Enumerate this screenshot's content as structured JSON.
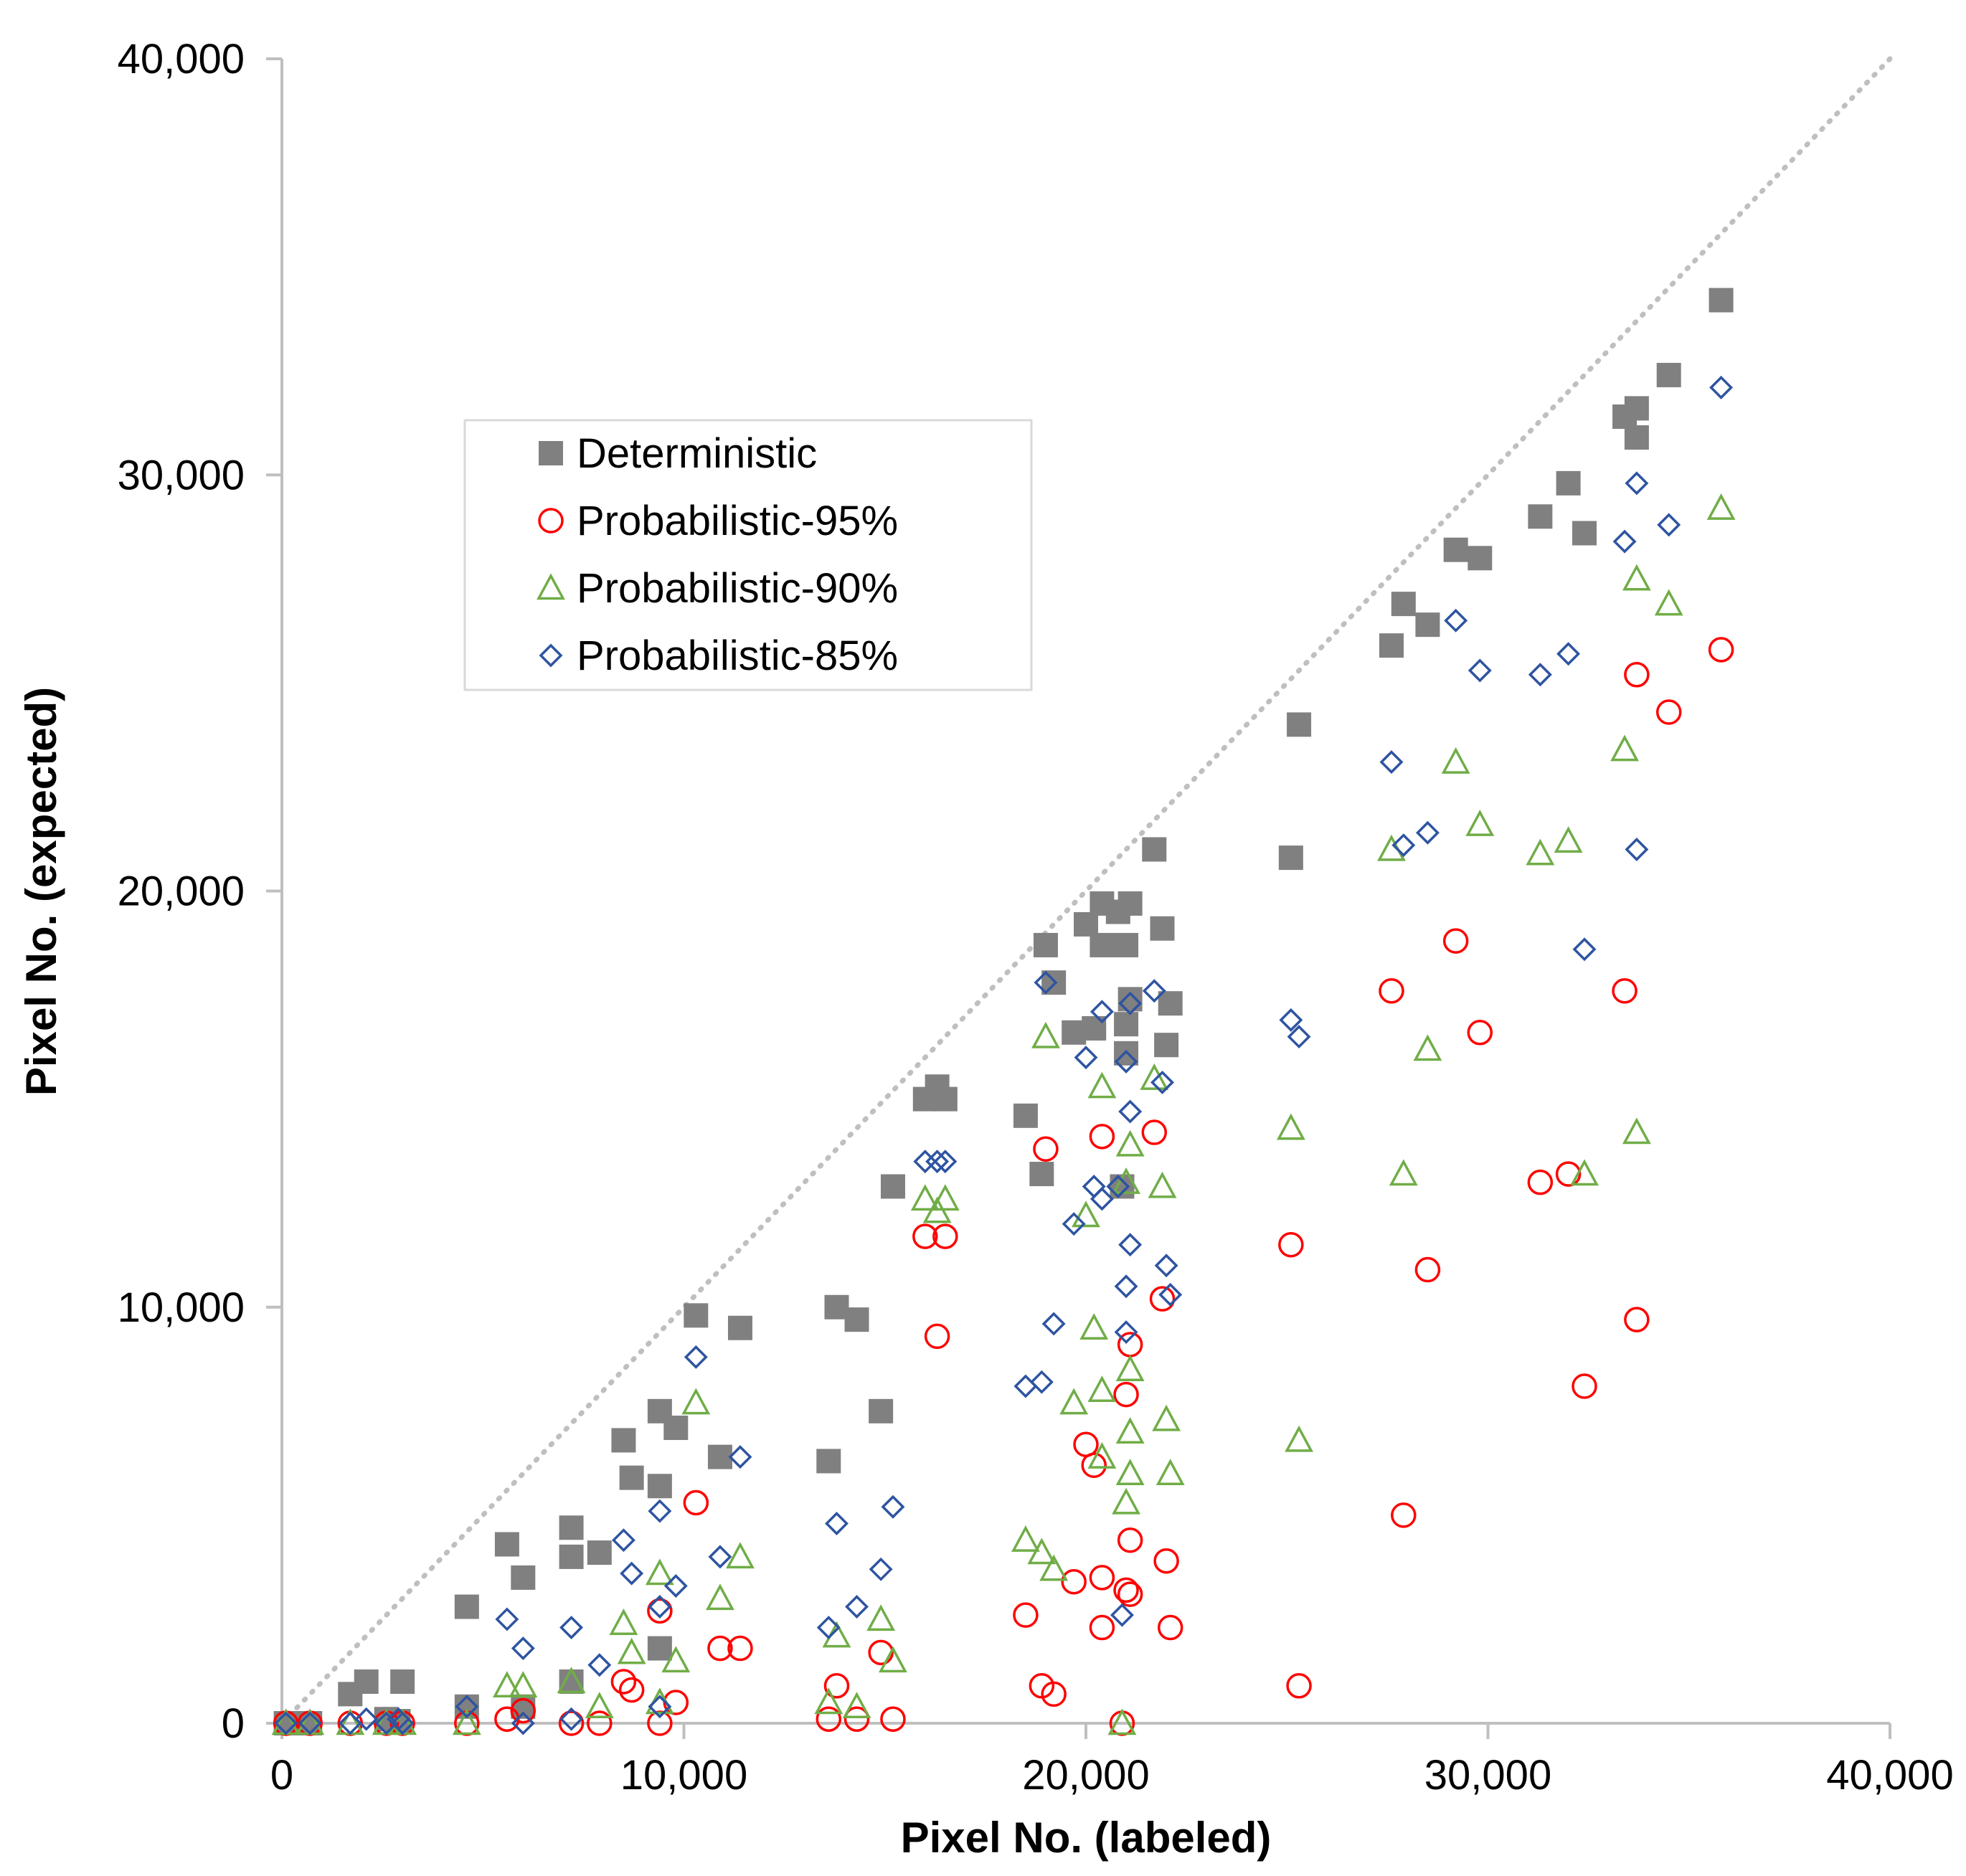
{
  "chart_data": {
    "type": "scatter",
    "xlabel": "Pixel No. (labeled)",
    "ylabel": "Pixel No. (expected)",
    "xlim": [
      0,
      40000
    ],
    "ylim": [
      0,
      40000
    ],
    "xticks": [
      "0",
      "10,000",
      "20,000",
      "30,000",
      "40,000"
    ],
    "yticks": [
      "0",
      "10,000",
      "20,000",
      "30,000",
      "40,000"
    ],
    "grid": false,
    "reference_line": {
      "style": "dotted",
      "color": "#BFBFBF",
      "from": [
        0,
        0
      ],
      "to": [
        40000,
        40000
      ]
    },
    "legend": {
      "placement": "upper-left-inside"
    },
    "series": [
      {
        "name": "Deterministic",
        "marker": "filled-square",
        "color": "#808080",
        "points": [
          [
            100,
            0
          ],
          [
            700,
            0
          ],
          [
            1700,
            700
          ],
          [
            2100,
            1000
          ],
          [
            2600,
            100
          ],
          [
            2900,
            50
          ],
          [
            3000,
            1000
          ],
          [
            4600,
            2800
          ],
          [
            4600,
            400
          ],
          [
            5600,
            4300
          ],
          [
            6000,
            3500
          ],
          [
            6000,
            400
          ],
          [
            7200,
            4700
          ],
          [
            7200,
            4000
          ],
          [
            7200,
            1000
          ],
          [
            7900,
            4100
          ],
          [
            8500,
            6800
          ],
          [
            8700,
            5900
          ],
          [
            9400,
            7500
          ],
          [
            9400,
            5700
          ],
          [
            9400,
            1800
          ],
          [
            9800,
            7100
          ],
          [
            10300,
            9800
          ],
          [
            10900,
            6400
          ],
          [
            11400,
            9500
          ],
          [
            13600,
            6300
          ],
          [
            13800,
            10000
          ],
          [
            14300,
            9700
          ],
          [
            14900,
            7500
          ],
          [
            15200,
            12900
          ],
          [
            16000,
            15000
          ],
          [
            16300,
            15300
          ],
          [
            16500,
            15000
          ],
          [
            18500,
            14600
          ],
          [
            18900,
            13200
          ],
          [
            19000,
            18700
          ],
          [
            19200,
            17800
          ],
          [
            19700,
            16600
          ],
          [
            20000,
            19200
          ],
          [
            20200,
            16700
          ],
          [
            20400,
            19700
          ],
          [
            20400,
            18700
          ],
          [
            20800,
            19500
          ],
          [
            20900,
            12900
          ],
          [
            21000,
            18700
          ],
          [
            21000,
            16100
          ],
          [
            21000,
            16800
          ],
          [
            21100,
            19700
          ],
          [
            21100,
            17400
          ],
          [
            21700,
            21000
          ],
          [
            21900,
            19100
          ],
          [
            22000,
            16300
          ],
          [
            22100,
            17300
          ],
          [
            25100,
            20800
          ],
          [
            25300,
            24000
          ],
          [
            27600,
            25900
          ],
          [
            27900,
            26900
          ],
          [
            28500,
            26400
          ],
          [
            29200,
            28200
          ],
          [
            29800,
            28000
          ],
          [
            31300,
            29000
          ],
          [
            32000,
            29800
          ],
          [
            32400,
            28600
          ],
          [
            33400,
            31400
          ],
          [
            33700,
            31600
          ],
          [
            33700,
            30900
          ],
          [
            34500,
            32400
          ],
          [
            35800,
            34200
          ]
        ]
      },
      {
        "name": "Probabilistic-95%",
        "marker": "open-circle",
        "color": "#FF0000",
        "points": [
          [
            100,
            0
          ],
          [
            700,
            0
          ],
          [
            1700,
            0
          ],
          [
            2600,
            0
          ],
          [
            3000,
            0
          ],
          [
            4600,
            0
          ],
          [
            5600,
            100
          ],
          [
            6000,
            300
          ],
          [
            7200,
            0
          ],
          [
            7900,
            0
          ],
          [
            8500,
            1000
          ],
          [
            8700,
            800
          ],
          [
            9400,
            2700
          ],
          [
            9400,
            0
          ],
          [
            9800,
            500
          ],
          [
            10300,
            5300
          ],
          [
            10900,
            1800
          ],
          [
            11400,
            1800
          ],
          [
            13600,
            100
          ],
          [
            13800,
            900
          ],
          [
            14300,
            100
          ],
          [
            14900,
            1700
          ],
          [
            15200,
            100
          ],
          [
            16000,
            11700
          ],
          [
            16300,
            9300
          ],
          [
            16500,
            11700
          ],
          [
            18500,
            2600
          ],
          [
            18900,
            900
          ],
          [
            19000,
            13800
          ],
          [
            19200,
            700
          ],
          [
            19700,
            3400
          ],
          [
            20000,
            6700
          ],
          [
            20200,
            6200
          ],
          [
            20400,
            2300
          ],
          [
            20400,
            3500
          ],
          [
            20400,
            14100
          ],
          [
            20900,
            0
          ],
          [
            21000,
            7900
          ],
          [
            21000,
            3200
          ],
          [
            21100,
            9100
          ],
          [
            21100,
            4400
          ],
          [
            21100,
            3100
          ],
          [
            21700,
            14200
          ],
          [
            21900,
            10200
          ],
          [
            22000,
            3900
          ],
          [
            22100,
            2300
          ],
          [
            25100,
            11500
          ],
          [
            25300,
            900
          ],
          [
            27600,
            17600
          ],
          [
            27900,
            5000
          ],
          [
            28500,
            10900
          ],
          [
            29200,
            18800
          ],
          [
            29800,
            16600
          ],
          [
            31300,
            13000
          ],
          [
            32000,
            13200
          ],
          [
            32400,
            8100
          ],
          [
            33400,
            17600
          ],
          [
            33700,
            25200
          ],
          [
            33700,
            9700
          ],
          [
            34500,
            24300
          ],
          [
            35800,
            25800
          ]
        ]
      },
      {
        "name": "Probabilistic-90%",
        "marker": "open-triangle",
        "color": "#70AD47",
        "points": [
          [
            100,
            0
          ],
          [
            700,
            0
          ],
          [
            1700,
            0
          ],
          [
            2600,
            0
          ],
          [
            3000,
            0
          ],
          [
            4600,
            0
          ],
          [
            5600,
            900
          ],
          [
            6000,
            900
          ],
          [
            7200,
            1000
          ],
          [
            7900,
            400
          ],
          [
            8500,
            2400
          ],
          [
            8700,
            1700
          ],
          [
            9400,
            3600
          ],
          [
            9400,
            500
          ],
          [
            9800,
            1500
          ],
          [
            10300,
            7700
          ],
          [
            10900,
            3000
          ],
          [
            11400,
            4000
          ],
          [
            13600,
            500
          ],
          [
            13800,
            2100
          ],
          [
            14300,
            400
          ],
          [
            14900,
            2500
          ],
          [
            15200,
            1500
          ],
          [
            16000,
            12600
          ],
          [
            16300,
            12300
          ],
          [
            16500,
            12600
          ],
          [
            18500,
            4400
          ],
          [
            18900,
            4100
          ],
          [
            19000,
            16500
          ],
          [
            19200,
            3700
          ],
          [
            19700,
            7700
          ],
          [
            20000,
            12200
          ],
          [
            20200,
            9500
          ],
          [
            20400,
            6400
          ],
          [
            20400,
            8000
          ],
          [
            20400,
            15300
          ],
          [
            20900,
            0
          ],
          [
            21000,
            13000
          ],
          [
            21000,
            5300
          ],
          [
            21100,
            13900
          ],
          [
            21100,
            6000
          ],
          [
            21100,
            8500
          ],
          [
            21100,
            7000
          ],
          [
            21700,
            15500
          ],
          [
            21900,
            12900
          ],
          [
            22000,
            7300
          ],
          [
            22100,
            6000
          ],
          [
            25100,
            14300
          ],
          [
            25300,
            6800
          ],
          [
            27600,
            21000
          ],
          [
            27900,
            13200
          ],
          [
            28500,
            16200
          ],
          [
            29200,
            23100
          ],
          [
            29800,
            21600
          ],
          [
            31300,
            20900
          ],
          [
            32000,
            21200
          ],
          [
            32400,
            13200
          ],
          [
            33400,
            23400
          ],
          [
            33700,
            27500
          ],
          [
            33700,
            14200
          ],
          [
            34500,
            26900
          ],
          [
            35800,
            29200
          ]
        ]
      },
      {
        "name": "Probabilistic-85%",
        "marker": "open-diamond",
        "color": "#2E54A1",
        "points": [
          [
            100,
            0
          ],
          [
            700,
            0
          ],
          [
            1700,
            0
          ],
          [
            2100,
            100
          ],
          [
            2600,
            0
          ],
          [
            2900,
            100
          ],
          [
            3000,
            0
          ],
          [
            4600,
            400
          ],
          [
            5600,
            2500
          ],
          [
            6000,
            1800
          ],
          [
            6000,
            0
          ],
          [
            7200,
            2300
          ],
          [
            7200,
            100
          ],
          [
            7900,
            1400
          ],
          [
            8500,
            4400
          ],
          [
            8700,
            3600
          ],
          [
            9400,
            5100
          ],
          [
            9400,
            2800
          ],
          [
            9400,
            400
          ],
          [
            9800,
            3300
          ],
          [
            10300,
            8800
          ],
          [
            10900,
            4000
          ],
          [
            11400,
            6400
          ],
          [
            13600,
            2300
          ],
          [
            13800,
            4800
          ],
          [
            14300,
            2800
          ],
          [
            14900,
            3700
          ],
          [
            15200,
            5200
          ],
          [
            16000,
            13500
          ],
          [
            16300,
            13500
          ],
          [
            16500,
            13500
          ],
          [
            18500,
            8100
          ],
          [
            18900,
            8200
          ],
          [
            19000,
            17800
          ],
          [
            19200,
            9600
          ],
          [
            19700,
            12000
          ],
          [
            20000,
            16000
          ],
          [
            20200,
            12900
          ],
          [
            20400,
            12600
          ],
          [
            20400,
            17100
          ],
          [
            20800,
            12900
          ],
          [
            20900,
            2600
          ],
          [
            21000,
            10500
          ],
          [
            21000,
            15900
          ],
          [
            21000,
            9400
          ],
          [
            21100,
            14700
          ],
          [
            21100,
            17300
          ],
          [
            21100,
            11500
          ],
          [
            21700,
            17600
          ],
          [
            21900,
            15400
          ],
          [
            22000,
            11000
          ],
          [
            22100,
            10300
          ],
          [
            25100,
            16900
          ],
          [
            25300,
            16500
          ],
          [
            27600,
            23100
          ],
          [
            27900,
            21100
          ],
          [
            28500,
            21400
          ],
          [
            29200,
            26500
          ],
          [
            29800,
            25300
          ],
          [
            31300,
            25200
          ],
          [
            32000,
            25700
          ],
          [
            32400,
            18600
          ],
          [
            33400,
            28400
          ],
          [
            33700,
            29800
          ],
          [
            33700,
            21000
          ],
          [
            34500,
            28800
          ],
          [
            35800,
            32100
          ]
        ]
      }
    ]
  }
}
